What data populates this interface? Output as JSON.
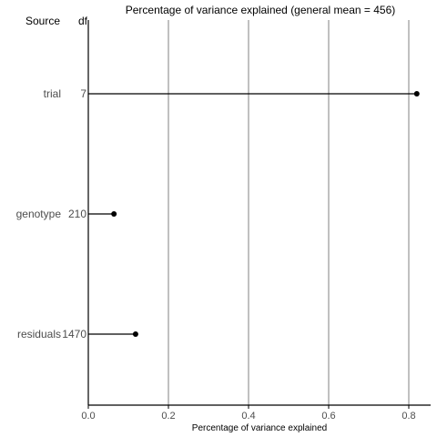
{
  "chart_data": {
    "type": "scatter",
    "title": "Percentage of variance explained (general mean = 456)",
    "xlabel": "Percentage of variance explained",
    "column_headers": {
      "source": "Source",
      "df": "df"
    },
    "rows": [
      {
        "source": "trial",
        "df": "7",
        "value": 0.82
      },
      {
        "source": "genotype",
        "df": "210",
        "value": 0.064
      },
      {
        "source": "residuals",
        "df": "1470",
        "value": 0.118
      }
    ],
    "xlim": [
      0,
      0.85
    ],
    "xticks": [
      0.0,
      0.2,
      0.4,
      0.6,
      0.8
    ],
    "xtick_labels": [
      "0.0",
      "0.2",
      "0.4",
      "0.6",
      "0.8"
    ],
    "grid": true,
    "colors": {
      "point": "#000000",
      "segment": "#000000",
      "grid": "#808080",
      "axis": "#000000",
      "label": "#4d4d4d"
    }
  }
}
